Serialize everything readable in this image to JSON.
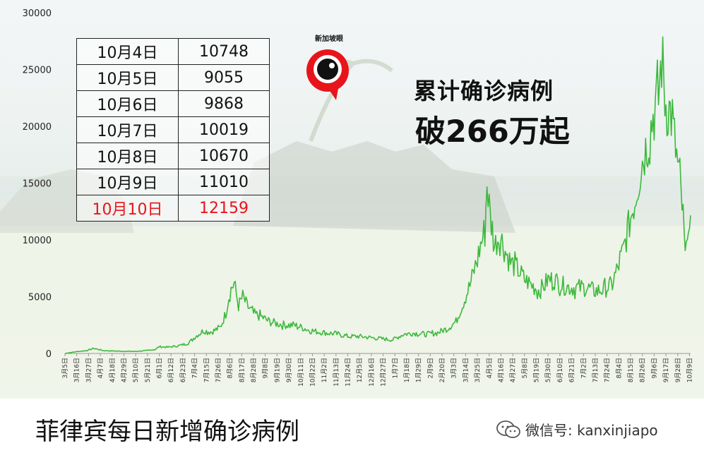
{
  "chart_data": {
    "type": "line",
    "title": "",
    "xlabel": "",
    "ylabel": "",
    "ylim": [
      0,
      30000
    ],
    "yticks": [
      0,
      5000,
      10000,
      15000,
      20000,
      25000,
      30000
    ],
    "x_start": "2020-03-05",
    "x_end": "2021-10-10",
    "x_tick_labels": [
      "3月5日",
      "3月16日",
      "3月27日",
      "4月7日",
      "4月18日",
      "4月29日",
      "5月10日",
      "5月21日",
      "6月1日",
      "6月12日",
      "6月23日",
      "7月4日",
      "7月15日",
      "7月26日",
      "8月6日",
      "8月17日",
      "8月28日",
      "9月8日",
      "9月19日",
      "9月30日",
      "10月11日",
      "10月22日",
      "11月2日",
      "11月13日",
      "11月24日",
      "12月5日",
      "12月16日",
      "12月27日",
      "1月7日",
      "1月18日",
      "1月29日",
      "2月9日",
      "2月20日",
      "3月3日",
      "3月14日",
      "3月25日",
      "4月5日",
      "4月16日",
      "4月27日",
      "5月8日",
      "5月19日",
      "5月30日",
      "6月10日",
      "6月21日",
      "7月2日",
      "7月13日",
      "7月24日",
      "8月4日",
      "8月15日",
      "8月26日",
      "9月6日",
      "9月17日",
      "9月28日",
      "10月9日"
    ],
    "line_color": "#3cb93c",
    "grid": false,
    "series": [
      {
        "name": "",
        "points": [
          [
            "2020-03-05",
            0
          ],
          [
            "2020-03-15",
            150
          ],
          [
            "2020-03-25",
            250
          ],
          [
            "2020-04-01",
            450
          ],
          [
            "2020-04-10",
            250
          ],
          [
            "2020-04-25",
            200
          ],
          [
            "2020-05-10",
            180
          ],
          [
            "2020-05-20",
            250
          ],
          [
            "2020-05-28",
            350
          ],
          [
            "2020-06-01",
            600
          ],
          [
            "2020-06-10",
            550
          ],
          [
            "2020-06-20",
            700
          ],
          [
            "2020-06-28",
            900
          ],
          [
            "2020-07-05",
            1500
          ],
          [
            "2020-07-12",
            2000
          ],
          [
            "2020-07-20",
            1900
          ],
          [
            "2020-07-28",
            2300
          ],
          [
            "2020-08-02",
            3500
          ],
          [
            "2020-08-06",
            5500
          ],
          [
            "2020-08-10",
            6200
          ],
          [
            "2020-08-14",
            4200
          ],
          [
            "2020-08-18",
            5000
          ],
          [
            "2020-08-22",
            4200
          ],
          [
            "2020-08-28",
            3500
          ],
          [
            "2020-09-05",
            3200
          ],
          [
            "2020-09-12",
            2800
          ],
          [
            "2020-09-20",
            2600
          ],
          [
            "2020-09-28",
            2500
          ],
          [
            "2020-10-05",
            2500
          ],
          [
            "2020-10-12",
            2300
          ],
          [
            "2020-10-20",
            2000
          ],
          [
            "2020-10-28",
            1900
          ],
          [
            "2020-11-05",
            1800
          ],
          [
            "2020-11-15",
            1700
          ],
          [
            "2020-11-25",
            1500
          ],
          [
            "2020-12-05",
            1500
          ],
          [
            "2020-12-15",
            1400
          ],
          [
            "2020-12-25",
            1300
          ],
          [
            "2021-01-05",
            1200
          ],
          [
            "2021-01-15",
            1700
          ],
          [
            "2021-01-25",
            1800
          ],
          [
            "2021-02-05",
            1700
          ],
          [
            "2021-02-15",
            1800
          ],
          [
            "2021-02-25",
            2200
          ],
          [
            "2021-03-05",
            2800
          ],
          [
            "2021-03-12",
            4500
          ],
          [
            "2021-03-18",
            6000
          ],
          [
            "2021-03-24",
            8000
          ],
          [
            "2021-03-28",
            9500
          ],
          [
            "2021-04-01",
            11000
          ],
          [
            "2021-04-03",
            15000
          ],
          [
            "2021-04-06",
            12000
          ],
          [
            "2021-04-10",
            9500
          ],
          [
            "2021-04-15",
            10500
          ],
          [
            "2021-04-20",
            9000
          ],
          [
            "2021-04-25",
            8000
          ],
          [
            "2021-05-01",
            7500
          ],
          [
            "2021-05-08",
            6500
          ],
          [
            "2021-05-15",
            6000
          ],
          [
            "2021-05-22",
            5500
          ],
          [
            "2021-05-30",
            6500
          ],
          [
            "2021-06-05",
            6500
          ],
          [
            "2021-06-12",
            6000
          ],
          [
            "2021-06-20",
            5800
          ],
          [
            "2021-06-28",
            5800
          ],
          [
            "2021-07-05",
            5800
          ],
          [
            "2021-07-12",
            5500
          ],
          [
            "2021-07-20",
            5600
          ],
          [
            "2021-07-28",
            6000
          ],
          [
            "2021-08-03",
            7500
          ],
          [
            "2021-08-08",
            9000
          ],
          [
            "2021-08-14",
            11500
          ],
          [
            "2021-08-20",
            14000
          ],
          [
            "2021-08-26",
            17000
          ],
          [
            "2021-09-01",
            19000
          ],
          [
            "2021-09-05",
            21000
          ],
          [
            "2021-09-10",
            22500
          ],
          [
            "2021-09-13",
            26000
          ],
          [
            "2021-09-17",
            22000
          ],
          [
            "2021-09-22",
            21000
          ],
          [
            "2021-09-26",
            18000
          ],
          [
            "2021-09-30",
            15000
          ],
          [
            "2021-10-02",
            13000
          ],
          [
            "2021-10-04",
            10748
          ],
          [
            "2021-10-05",
            9055
          ],
          [
            "2021-10-06",
            9868
          ],
          [
            "2021-10-07",
            10019
          ],
          [
            "2021-10-08",
            10670
          ],
          [
            "2021-10-09",
            11010
          ],
          [
            "2021-10-10",
            12159
          ]
        ]
      }
    ]
  },
  "table": {
    "rows": [
      {
        "date": "10月4日",
        "count": "10748",
        "highlight": false
      },
      {
        "date": "10月5日",
        "count": "9055",
        "highlight": false
      },
      {
        "date": "10月6日",
        "count": "9868",
        "highlight": false
      },
      {
        "date": "10月7日",
        "count": "10019",
        "highlight": false
      },
      {
        "date": "10月8日",
        "count": "10670",
        "highlight": false
      },
      {
        "date": "10月9日",
        "count": "11010",
        "highlight": false
      },
      {
        "date": "10月10日",
        "count": "12159",
        "highlight": true
      }
    ],
    "highlight_color": "#e8141b"
  },
  "headline": {
    "line1": "累计确诊病例",
    "line2": "破266万起"
  },
  "logo": {
    "text": "新加坡眼",
    "icon": "eye-logo-icon"
  },
  "caption": "菲律宾每日新增确诊病例",
  "watermark": {
    "icon": "wechat-icon",
    "text": "微信号: kanxinjiapo"
  }
}
